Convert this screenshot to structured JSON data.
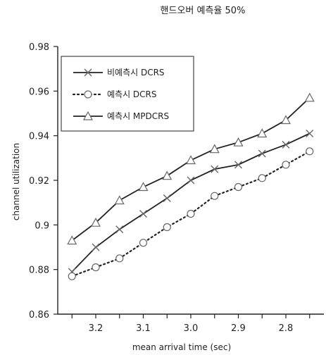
{
  "chart_data": {
    "type": "line",
    "title": "핸드오버 예측율 50%",
    "xlabel": "mean arrival time (sec)",
    "ylabel": "channel utilization",
    "x": [
      3.25,
      3.2,
      3.15,
      3.1,
      3.05,
      3.0,
      2.95,
      2.9,
      2.85,
      2.8,
      2.75
    ],
    "x_tick_labels": [
      "3.2",
      "3.1",
      "3.0",
      "2.9",
      "2.8"
    ],
    "x_tick_values": [
      3.2,
      3.1,
      3.0,
      2.9,
      2.8
    ],
    "xlim": [
      3.28,
      2.72
    ],
    "x_reversed": true,
    "ylim": [
      0.86,
      0.98
    ],
    "y_tick_labels": [
      "0.86",
      "0.88",
      "0.9",
      "0.92",
      "0.94",
      "0.96",
      "0.98"
    ],
    "y_tick_values": [
      0.86,
      0.88,
      0.9,
      0.92,
      0.94,
      0.96,
      0.98
    ],
    "legend_position": "top-left",
    "grid": false,
    "series": [
      {
        "name": "비예측시 DCRS",
        "marker": "x",
        "line": "solid",
        "values": [
          0.879,
          0.89,
          0.898,
          0.905,
          0.912,
          0.92,
          0.925,
          0.927,
          0.932,
          0.936,
          0.941
        ]
      },
      {
        "name": "예측시 DCRS",
        "marker": "circle",
        "line": "dotted",
        "values": [
          0.877,
          0.881,
          0.885,
          0.892,
          0.899,
          0.905,
          0.913,
          0.917,
          0.921,
          0.927,
          0.933
        ]
      },
      {
        "name": "예측시 MPDCRS",
        "marker": "triangle",
        "line": "solid",
        "values": [
          0.893,
          0.901,
          0.911,
          0.917,
          0.922,
          0.929,
          0.934,
          0.937,
          0.941,
          0.947,
          0.957
        ]
      }
    ],
    "colors": {
      "line": "#222222",
      "marker": "#666666"
    }
  }
}
